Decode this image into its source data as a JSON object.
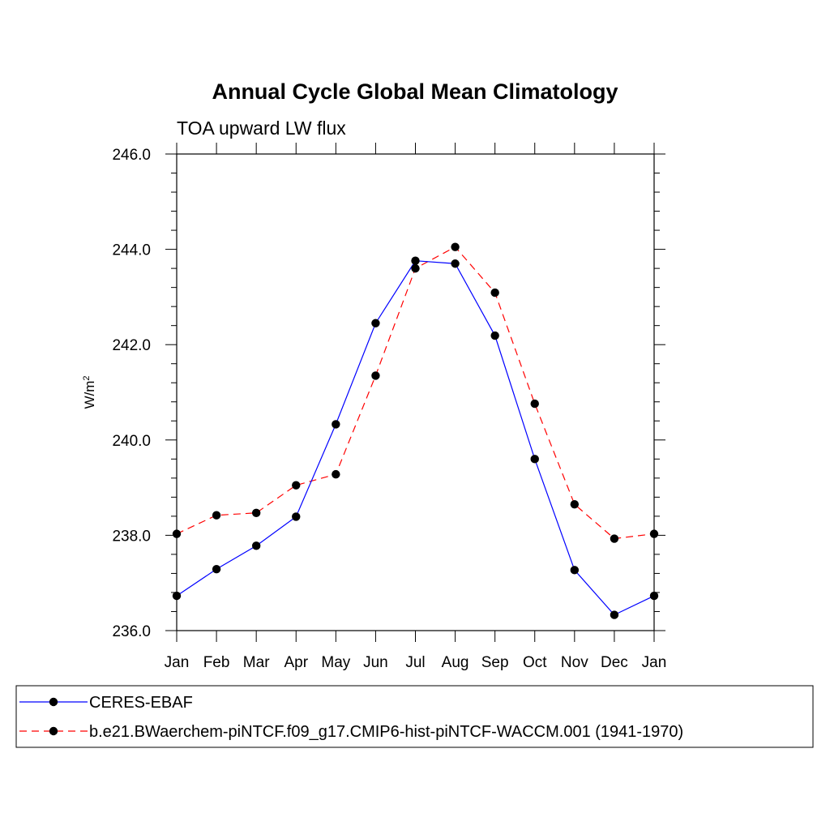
{
  "chart_data": {
    "type": "line",
    "title": "Annual Cycle Global Mean Climatology",
    "subtitle": "TOA upward LW flux",
    "ylabel_base": "W/m",
    "ylabel_sup": "2",
    "xlabel": "",
    "ylim": [
      236.0,
      246.0
    ],
    "yticks": [
      236.0,
      238.0,
      240.0,
      242.0,
      244.0,
      246.0
    ],
    "ytick_labels": [
      "236.0",
      "238.0",
      "240.0",
      "242.0",
      "244.0",
      "246.0"
    ],
    "categories": [
      "Jan",
      "Feb",
      "Mar",
      "Apr",
      "May",
      "Jun",
      "Jul",
      "Aug",
      "Sep",
      "Oct",
      "Nov",
      "Dec",
      "Jan"
    ],
    "grid": false,
    "legend_position": "bottom",
    "series": [
      {
        "name": "CERES-EBAF",
        "color": "#0000ff",
        "dash": "solid",
        "marker": "filled-circle",
        "values": [
          236.73,
          237.29,
          237.78,
          238.39,
          240.33,
          242.45,
          243.76,
          243.7,
          242.19,
          239.6,
          237.27,
          236.33,
          236.73
        ]
      },
      {
        "name": "b.e21.BWaerchem-piNTCF.f09_g17.CMIP6-hist-piNTCF-WACCM.001 (1941-1970)",
        "color": "#ff0000",
        "dash": "dashed",
        "marker": "filled-circle",
        "values": [
          238.03,
          238.42,
          238.47,
          239.05,
          239.28,
          241.35,
          243.6,
          244.05,
          243.09,
          240.76,
          238.65,
          237.93,
          238.03
        ]
      }
    ]
  }
}
